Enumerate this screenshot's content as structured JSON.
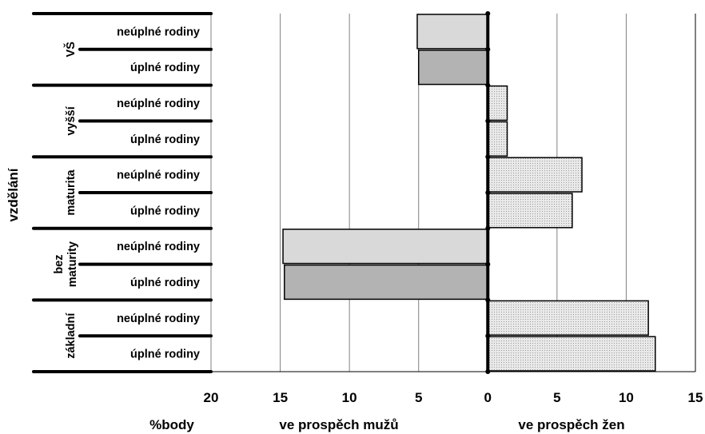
{
  "chart_data": {
    "type": "bar",
    "orientation": "horizontal",
    "title": "",
    "ylabel": "vzdělání",
    "xlabel_unit": "%body",
    "xlabel_left": "ve prospěch mužů",
    "xlabel_right": "ve prospěch žen",
    "xlim": [
      -20,
      15
    ],
    "x_ticks": [
      -20,
      -15,
      -10,
      -5,
      0,
      5,
      10,
      15
    ],
    "x_tick_labels": [
      "20",
      "15",
      "10",
      "5",
      "0",
      "5",
      "10",
      "15"
    ],
    "grid": true,
    "groups": [
      {
        "label": "VŠ",
        "rows": [
          {
            "label": "neúplné rodiny",
            "value": -5.1
          },
          {
            "label": "úplné rodiny",
            "value": -5.0
          }
        ]
      },
      {
        "label": "vyšší",
        "rows": [
          {
            "label": "neúplné rodiny",
            "value": 1.4
          },
          {
            "label": "úplné rodiny",
            "value": 1.4
          }
        ]
      },
      {
        "label": "maturita",
        "rows": [
          {
            "label": "neúplné rodiny",
            "value": 6.8
          },
          {
            "label": "úplné rodiny",
            "value": 6.1
          }
        ]
      },
      {
        "label": "bez maturity",
        "rows": [
          {
            "label": "neúplné rodiny",
            "value": -14.8
          },
          {
            "label": "úplné rodiny",
            "value": -14.7
          }
        ]
      },
      {
        "label": "základní",
        "rows": [
          {
            "label": "neúplné rodiny",
            "value": 11.6
          },
          {
            "label": "úplné rodiny",
            "value": 12.1
          }
        ]
      }
    ],
    "colors": {
      "male_neuplne": "#d9d9d9",
      "male_uplne": "#b3b3b3",
      "female": "#e6e6e6",
      "grid": "#808080"
    }
  }
}
